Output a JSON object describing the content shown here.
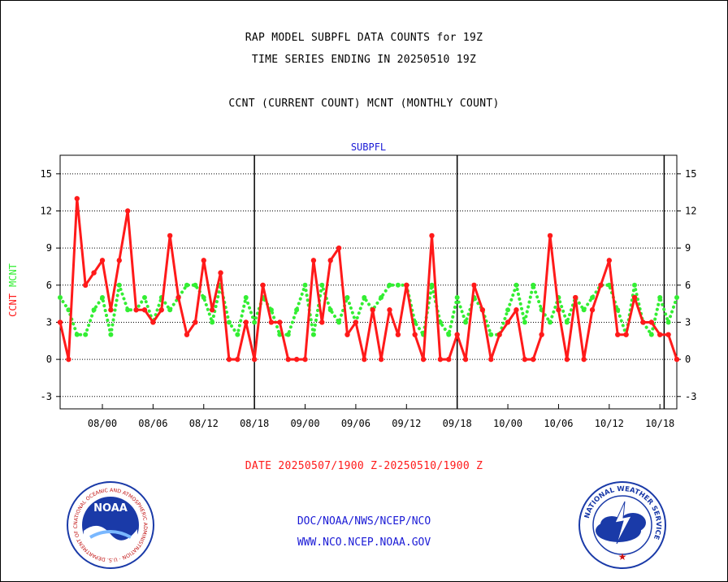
{
  "header": {
    "title_line1": "RAP MODEL SUBPFL DATA COUNTS for 19Z",
    "title_line2": "TIME SERIES ENDING IN 20250510 19Z",
    "title_line3": "CCNT (CURRENT COUNT) MCNT (MONTHLY COUNT)"
  },
  "footer": {
    "date_range": "DATE 20250507/1900 Z-20250510/1900 Z",
    "link1": "DOC/NOAA/NWS/NCEP/NCO",
    "link2": "WWW.NCO.NCEP.NOAA.GOV"
  },
  "logos": {
    "left": {
      "center_text": "NOAA",
      "ring_text": "NATIONAL OCEANIC AND ATMOSPHERIC ADMINISTRATION · U.S. DEPARTMENT OF COMMERCE"
    },
    "right": {
      "ring_text": "NATIONAL WEATHER SERVICE"
    }
  },
  "colors": {
    "ccnt": "#ff1a1a",
    "mcnt": "#33ee33",
    "panel_title": "#1a1ad6",
    "date_text": "#ff1a1a",
    "links": "#1a1ad6"
  },
  "chart_data": {
    "type": "line",
    "title": "SUBPFL",
    "ylabel_series": [
      "CCNT",
      "MCNT"
    ],
    "ylim": [
      -4,
      16.5
    ],
    "yticks": [
      -3,
      0,
      3,
      6,
      9,
      12,
      15
    ],
    "ytick_labels": [
      "-3",
      "0",
      "3",
      "6",
      "9",
      "12",
      "15"
    ],
    "xlim": [
      0,
      73
    ],
    "xtick_labels": [
      "08/00",
      "08/06",
      "08/12",
      "08/18",
      "09/00",
      "09/06",
      "09/12",
      "09/18",
      "10/00",
      "10/06",
      "10/12",
      "10/18"
    ],
    "xtick_positions": [
      5,
      11,
      17,
      23,
      29,
      35,
      41,
      47,
      53,
      59,
      65,
      71
    ],
    "day_boundaries": [
      23,
      47,
      71.5
    ],
    "grid": "horizontal-dotted",
    "series": [
      {
        "name": "CCNT",
        "style": "solid",
        "values": [
          3,
          0,
          13,
          6,
          7,
          8,
          4,
          8,
          12,
          4,
          4,
          3,
          4,
          10,
          5,
          2,
          3,
          8,
          4,
          7,
          0,
          0,
          3,
          0,
          6,
          3,
          3,
          0,
          0,
          0,
          8,
          3,
          8,
          9,
          2,
          3,
          0,
          4,
          0,
          4,
          2,
          6,
          2,
          0,
          10,
          0,
          0,
          2,
          0,
          6,
          4,
          0,
          2,
          3,
          4,
          0,
          0,
          2,
          10,
          4,
          0,
          5,
          0,
          4,
          6,
          8,
          2,
          2,
          5,
          3,
          3,
          2,
          2,
          0
        ]
      },
      {
        "name": "MCNT",
        "style": "dotted",
        "values": [
          5,
          4,
          2,
          2,
          4,
          5,
          2,
          6,
          4,
          4,
          5,
          3,
          5,
          4,
          5,
          6,
          6,
          5,
          3,
          6,
          3,
          2,
          5,
          3,
          5,
          4,
          2,
          2,
          4,
          6,
          2,
          6,
          4,
          3,
          5,
          3,
          5,
          4,
          5,
          6,
          6,
          6,
          3,
          2,
          6,
          3,
          2,
          5,
          3,
          5,
          4,
          2,
          2,
          4,
          6,
          3,
          6,
          4,
          3,
          5,
          3,
          5,
          4,
          5,
          6,
          6,
          4,
          2,
          6,
          3,
          2,
          5,
          3,
          5
        ]
      }
    ]
  }
}
